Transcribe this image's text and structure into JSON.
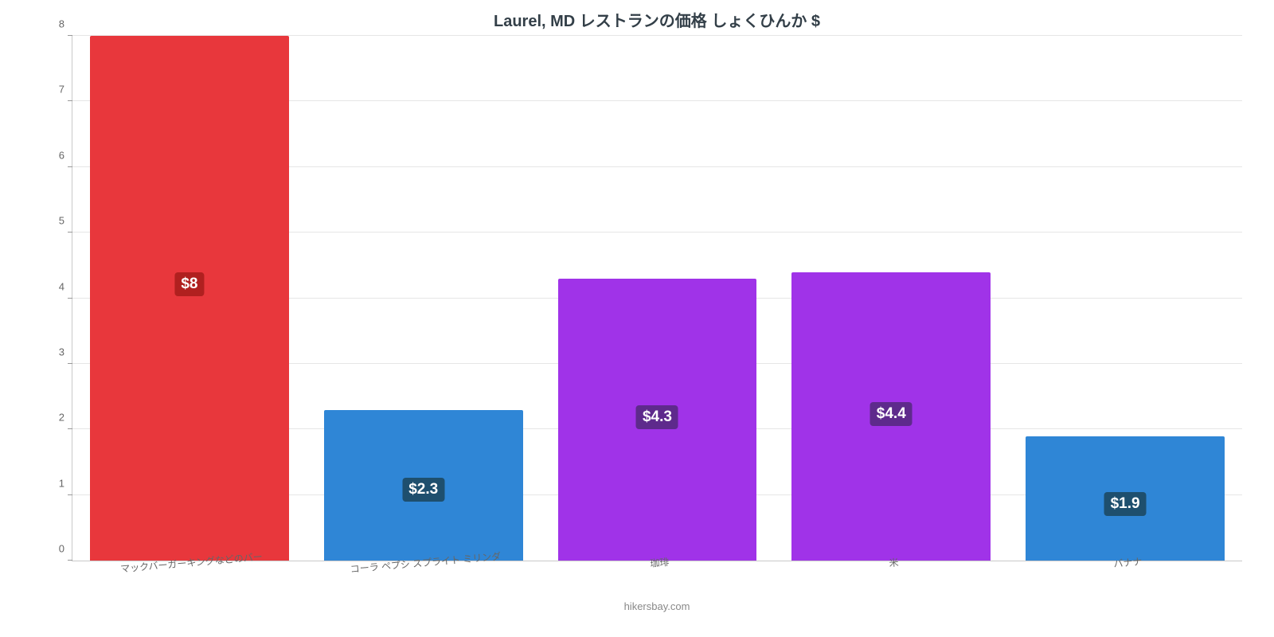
{
  "chart": {
    "type": "bar",
    "title": "Laurel, MD レストランの価格 しょくひんか $",
    "title_fontsize": 20,
    "title_color": "#333f48",
    "background_color": "#ffffff",
    "grid_color": "#e6e6e6",
    "axis_color": "#c9c9c9",
    "ylim": [
      0,
      8
    ],
    "yticks": [
      0,
      1,
      2,
      3,
      4,
      5,
      6,
      7,
      8
    ],
    "ytick_fontsize": 13,
    "xtick_fontsize": 12,
    "xtick_rotation_deg": -5,
    "bar_width_ratio": 0.85,
    "value_label_fontsize": 19,
    "value_label_text_color": "#ffffff",
    "credit": "hikersbay.com",
    "credit_color": "#888888",
    "credit_fontsize": 13,
    "categories": [
      "マックバーガーキングなどのバー",
      "コーラ ペプシ スプライト ミリンダ",
      "珈琲",
      "米",
      "バナナ"
    ],
    "values": [
      8.0,
      2.3,
      4.3,
      4.4,
      1.9
    ],
    "value_labels": [
      "$8",
      "$2.3",
      "$4.3",
      "$4.4",
      "$1.9"
    ],
    "bar_colors": [
      "#e8373c",
      "#2f86d6",
      "#a033e8",
      "#a033e8",
      "#2f86d6"
    ],
    "value_label_bg_colors": [
      "#b0201f",
      "#1e4f6e",
      "#5e2a8c",
      "#5e2a8c",
      "#1e4f6e"
    ]
  }
}
